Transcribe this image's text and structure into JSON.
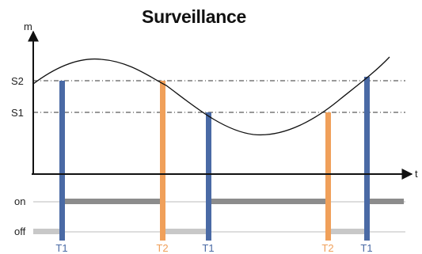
{
  "title": "Surveillance",
  "axes": {
    "y_label": "m",
    "x_label": "t"
  },
  "thresholds": {
    "upper": "S2",
    "lower": "S1"
  },
  "states": {
    "on": "on",
    "off": "off"
  },
  "events": [
    {
      "label": "T1",
      "threshold": "S2",
      "color": "#4a6aa5"
    },
    {
      "label": "T2",
      "threshold": "S2",
      "color": "#f0a05a"
    },
    {
      "label": "T1",
      "threshold": "S1",
      "color": "#4a6aa5"
    },
    {
      "label": "T2",
      "threshold": "S1",
      "color": "#f0a05a"
    },
    {
      "label": "T1",
      "threshold": "S2",
      "color": "#4a6aa5"
    }
  ],
  "colors": {
    "t1": "#4a6aa5",
    "t2": "#f0a05a",
    "on_bar": "#8c8c8c",
    "off_bar": "#c8c8c8",
    "axis": "#111111",
    "curve": "#111111"
  }
}
